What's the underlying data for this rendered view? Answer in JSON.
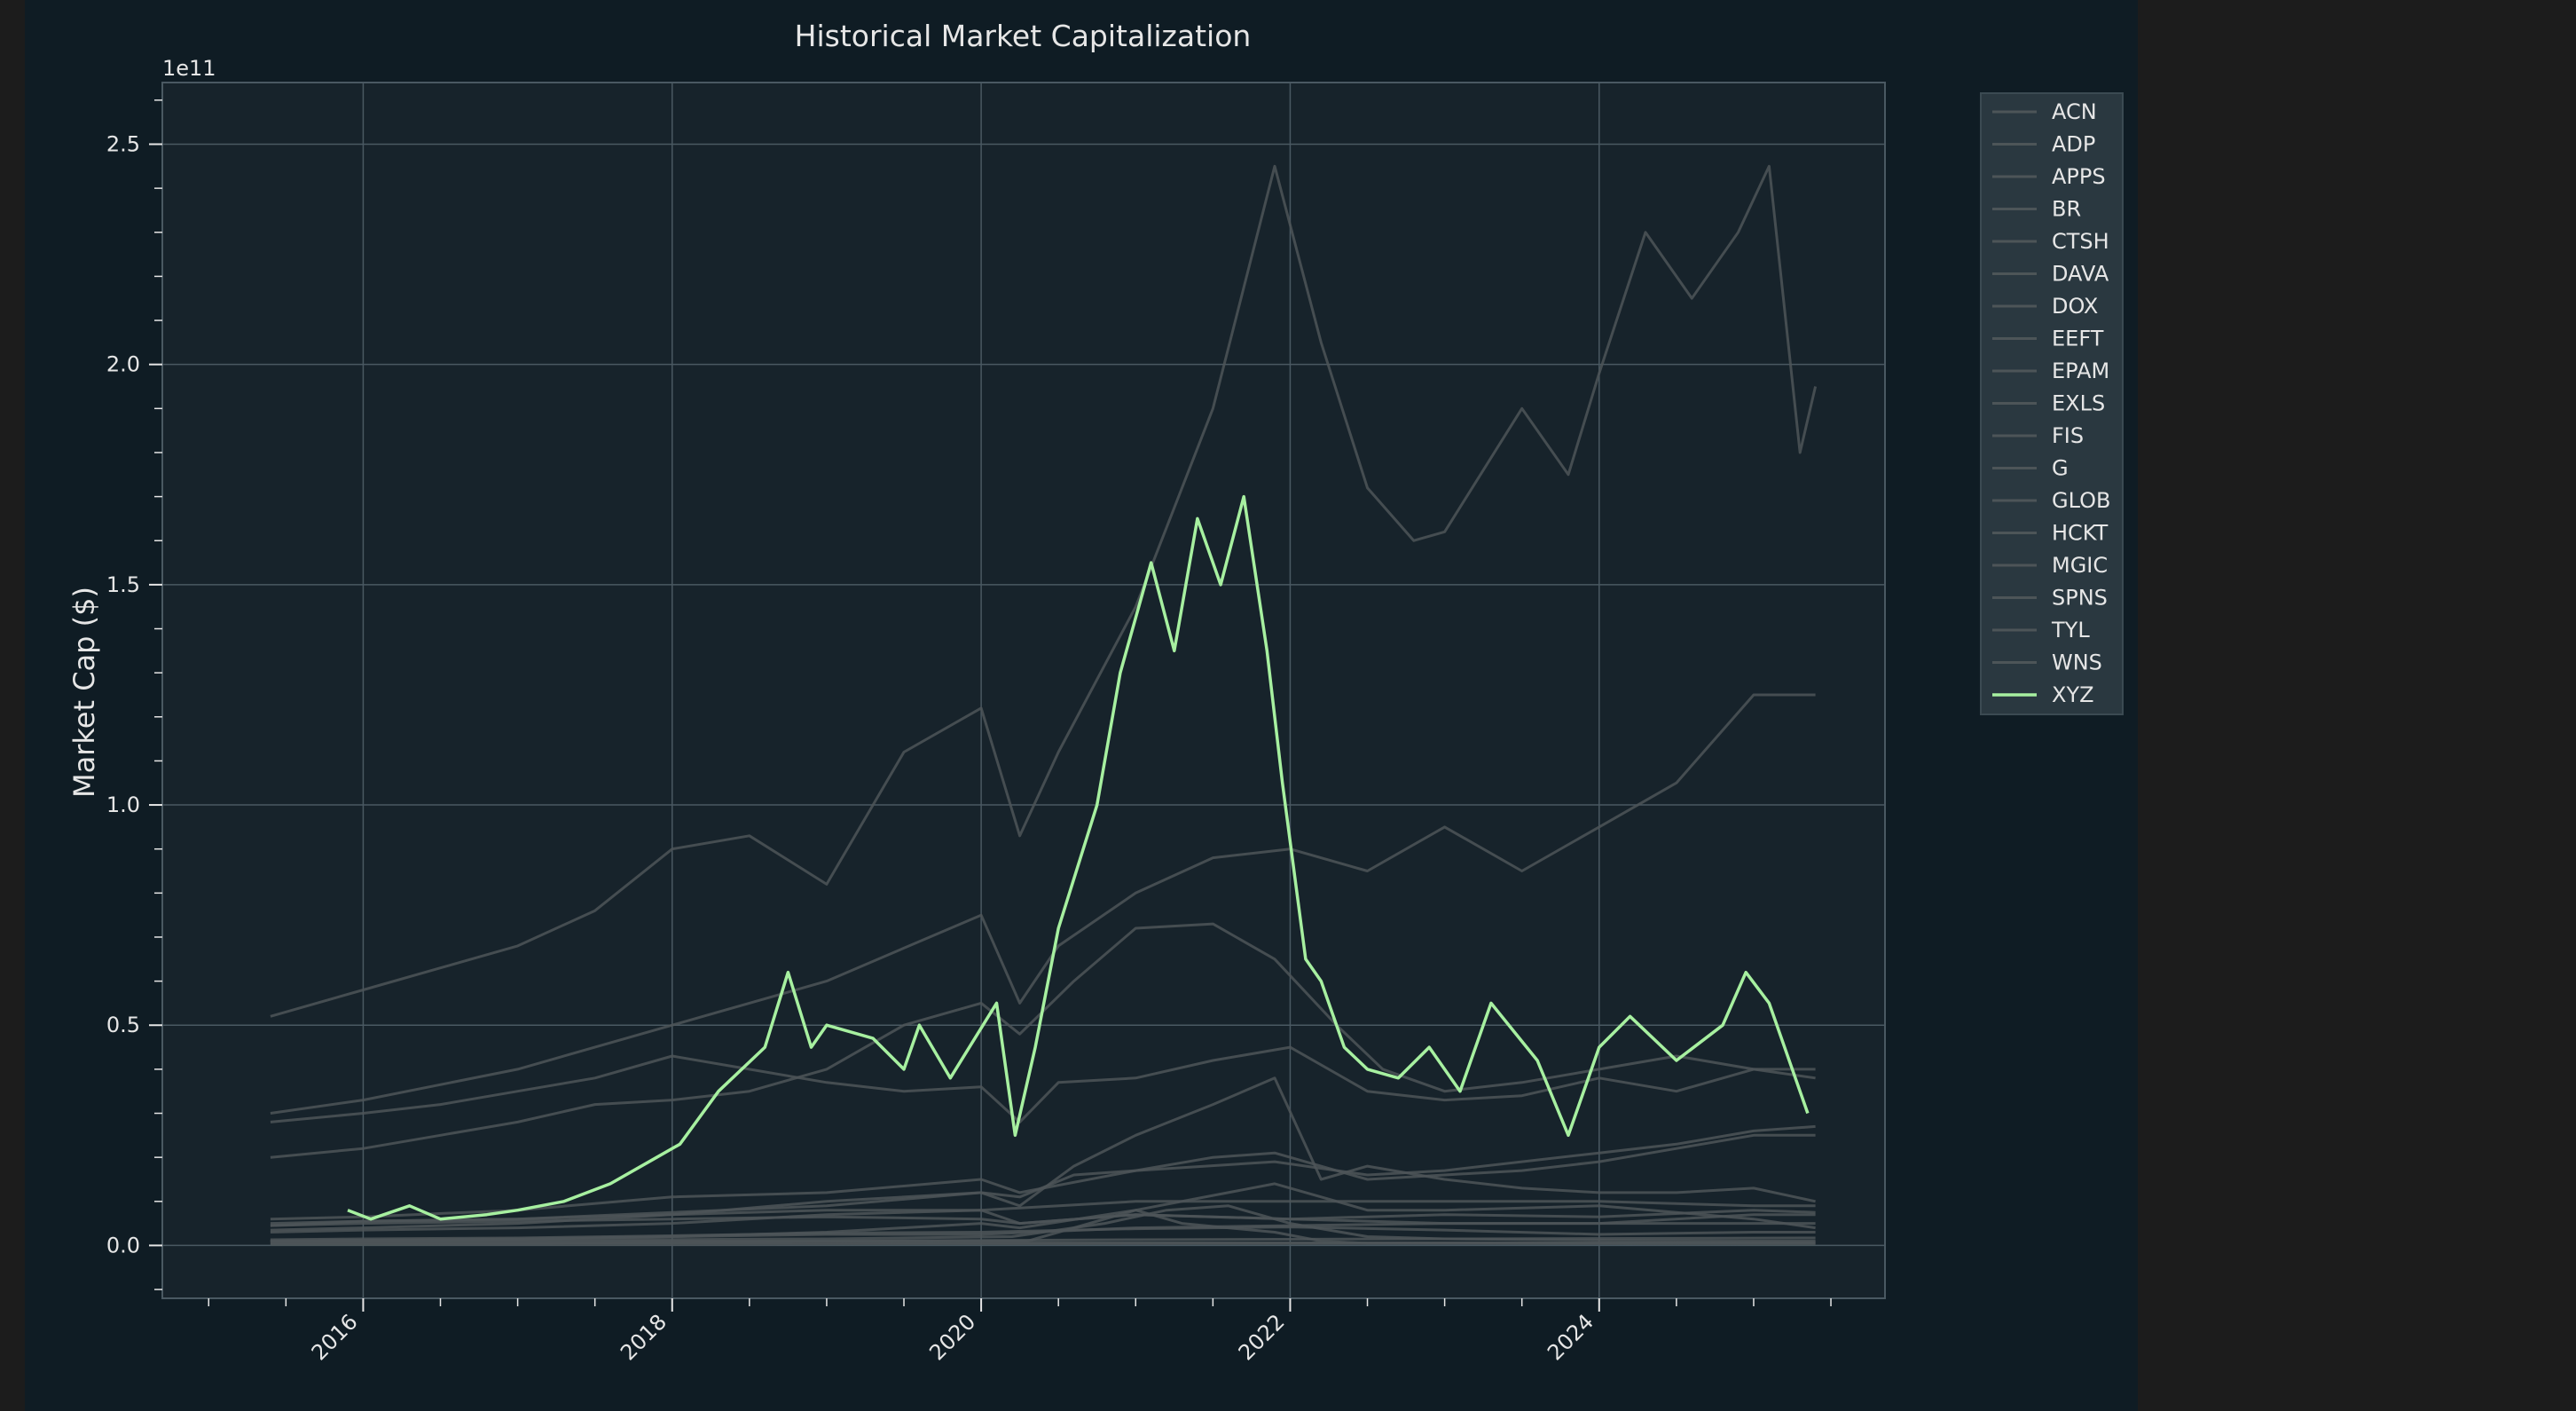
{
  "chart_data": {
    "type": "line",
    "title": "Historical Market Capitalization",
    "xlabel": "",
    "ylabel": "Market Cap ($)",
    "y_offset_label": "1e11",
    "xlim": [
      2014.7,
      2025.85
    ],
    "ylim": [
      -0.12,
      2.64
    ],
    "x_ticks": [
      2016,
      2018,
      2020,
      2022,
      2024
    ],
    "x_tick_labels": [
      "2016",
      "2018",
      "2020",
      "2022",
      "2024"
    ],
    "y_ticks": [
      0.0,
      0.5,
      1.0,
      1.5,
      2.0,
      2.5
    ],
    "y_tick_labels": [
      "0.0",
      "0.5",
      "1.0",
      "1.5",
      "2.0",
      "2.5"
    ],
    "grid": true,
    "legend_position": "outside-right-top",
    "colors": {
      "figure_bg": "#0f1c24",
      "axes_bg": "#17232b",
      "grid": "#4a5962",
      "muted_series": "#4d5558",
      "highlight": "#a7f0a0",
      "text": "#e6e6e6"
    },
    "series": [
      {
        "name": "ACN",
        "color": "#4d5558",
        "highlight": false,
        "x": [
          2015.4,
          2016.0,
          2016.5,
          2017.0,
          2017.5,
          2018.0,
          2018.5,
          2019.0,
          2019.5,
          2020.0,
          2020.25,
          2020.5,
          2021.0,
          2021.5,
          2021.9,
          2022.2,
          2022.5,
          2022.8,
          2023.0,
          2023.5,
          2023.8,
          2024.0,
          2024.3,
          2024.6,
          2024.9,
          2025.1,
          2025.3,
          2025.4
        ],
        "values": [
          0.52,
          0.58,
          0.63,
          0.68,
          0.76,
          0.9,
          0.93,
          0.82,
          1.12,
          1.22,
          0.93,
          1.12,
          1.45,
          1.9,
          2.45,
          2.05,
          1.72,
          1.6,
          1.62,
          1.9,
          1.75,
          1.98,
          2.3,
          2.15,
          2.3,
          2.45,
          1.8,
          1.95
        ]
      },
      {
        "name": "ADP",
        "color": "#4d5558",
        "highlight": false,
        "x": [
          2015.4,
          2016.0,
          2017.0,
          2018.0,
          2019.0,
          2020.0,
          2020.25,
          2020.5,
          2021.0,
          2021.5,
          2022.0,
          2022.5,
          2023.0,
          2023.5,
          2024.0,
          2024.5,
          2025.0,
          2025.4
        ],
        "values": [
          0.3,
          0.33,
          0.4,
          0.5,
          0.6,
          0.75,
          0.55,
          0.68,
          0.8,
          0.88,
          0.9,
          0.85,
          0.95,
          0.85,
          0.95,
          1.05,
          1.25,
          1.25
        ]
      },
      {
        "name": "APPS",
        "color": "#4d5558",
        "highlight": false,
        "x": [
          2015.4,
          2017.0,
          2019.0,
          2020.3,
          2020.8,
          2021.0,
          2021.3,
          2021.6,
          2021.9,
          2022.2,
          2022.5,
          2023.0,
          2024.0,
          2025.0,
          2025.4
        ],
        "values": [
          0.005,
          0.005,
          0.01,
          0.01,
          0.06,
          0.08,
          0.05,
          0.04,
          0.03,
          0.01,
          0.005,
          0.005,
          0.004,
          0.003,
          0.003
        ]
      },
      {
        "name": "BR",
        "color": "#4d5558",
        "highlight": false,
        "x": [
          2015.4,
          2016.0,
          2017.0,
          2018.0,
          2019.0,
          2020.0,
          2020.25,
          2021.0,
          2021.9,
          2022.5,
          2023.0,
          2024.0,
          2024.5,
          2025.0,
          2025.4
        ],
        "values": [
          0.06,
          0.065,
          0.08,
          0.11,
          0.12,
          0.15,
          0.12,
          0.17,
          0.19,
          0.16,
          0.17,
          0.21,
          0.23,
          0.26,
          0.27
        ]
      },
      {
        "name": "CTSH",
        "color": "#4d5558",
        "highlight": false,
        "x": [
          2015.4,
          2016.0,
          2016.5,
          2017.0,
          2017.5,
          2018.0,
          2018.5,
          2019.0,
          2019.5,
          2020.0,
          2020.25,
          2020.5,
          2021.0,
          2021.5,
          2022.0,
          2022.5,
          2023.0,
          2023.5,
          2024.0,
          2024.5,
          2025.0,
          2025.4
        ],
        "values": [
          0.28,
          0.3,
          0.32,
          0.35,
          0.38,
          0.43,
          0.4,
          0.37,
          0.35,
          0.36,
          0.28,
          0.37,
          0.38,
          0.42,
          0.45,
          0.35,
          0.33,
          0.34,
          0.38,
          0.35,
          0.4,
          0.38
        ]
      },
      {
        "name": "DAVA",
        "color": "#4d5558",
        "highlight": false,
        "x": [
          2015.4,
          2017.0,
          2019.0,
          2020.2,
          2020.8,
          2021.2,
          2021.6,
          2022.0,
          2022.5,
          2023.0,
          2024.0,
          2025.0,
          2025.4
        ],
        "values": [
          0.01,
          0.012,
          0.015,
          0.02,
          0.05,
          0.08,
          0.09,
          0.05,
          0.02,
          0.015,
          0.012,
          0.01,
          0.01
        ]
      },
      {
        "name": "DOX",
        "color": "#4d5558",
        "highlight": false,
        "x": [
          2015.4,
          2016.0,
          2017.0,
          2018.0,
          2019.0,
          2020.0,
          2021.0,
          2022.0,
          2023.0,
          2024.0,
          2025.0,
          2025.4
        ],
        "values": [
          0.05,
          0.055,
          0.06,
          0.07,
          0.08,
          0.08,
          0.1,
          0.1,
          0.1,
          0.1,
          0.09,
          0.09
        ]
      },
      {
        "name": "EEFT",
        "color": "#4d5558",
        "highlight": false,
        "x": [
          2015.4,
          2016.0,
          2017.0,
          2018.0,
          2019.0,
          2020.0,
          2020.25,
          2021.0,
          2022.0,
          2023.0,
          2024.0,
          2025.0,
          2025.4
        ],
        "values": [
          0.03,
          0.035,
          0.04,
          0.05,
          0.07,
          0.08,
          0.05,
          0.07,
          0.06,
          0.05,
          0.05,
          0.05,
          0.05
        ]
      },
      {
        "name": "EPAM",
        "color": "#4d5558",
        "highlight": false,
        "x": [
          2015.4,
          2016.0,
          2017.0,
          2018.0,
          2019.0,
          2020.0,
          2020.25,
          2020.6,
          2021.0,
          2021.5,
          2021.9,
          2022.2,
          2022.5,
          2023.0,
          2023.5,
          2024.0,
          2024.5,
          2025.0,
          2025.4
        ],
        "values": [
          0.035,
          0.04,
          0.05,
          0.07,
          0.1,
          0.12,
          0.09,
          0.18,
          0.25,
          0.32,
          0.38,
          0.15,
          0.18,
          0.15,
          0.13,
          0.12,
          0.12,
          0.13,
          0.1
        ]
      },
      {
        "name": "EXLS",
        "color": "#4d5558",
        "highlight": false,
        "x": [
          2015.4,
          2016.0,
          2017.0,
          2018.0,
          2019.0,
          2020.0,
          2021.0,
          2022.0,
          2023.0,
          2024.0,
          2025.0,
          2025.4
        ],
        "values": [
          0.01,
          0.012,
          0.015,
          0.02,
          0.025,
          0.025,
          0.04,
          0.045,
          0.05,
          0.05,
          0.07,
          0.07
        ]
      },
      {
        "name": "FIS",
        "color": "#4d5558",
        "highlight": false,
        "x": [
          2015.4,
          2016.0,
          2016.5,
          2017.0,
          2017.5,
          2018.0,
          2018.5,
          2019.0,
          2019.5,
          2020.0,
          2020.25,
          2020.6,
          2021.0,
          2021.5,
          2021.9,
          2022.3,
          2022.6,
          2023.0,
          2023.5,
          2024.0,
          2024.5,
          2025.0,
          2025.4
        ],
        "values": [
          0.2,
          0.22,
          0.25,
          0.28,
          0.32,
          0.33,
          0.35,
          0.4,
          0.5,
          0.55,
          0.48,
          0.6,
          0.72,
          0.73,
          0.65,
          0.5,
          0.4,
          0.35,
          0.37,
          0.4,
          0.43,
          0.4,
          0.4
        ]
      },
      {
        "name": "G",
        "color": "#4d5558",
        "highlight": false,
        "x": [
          2015.4,
          2016.0,
          2017.0,
          2018.0,
          2019.0,
          2020.0,
          2020.25,
          2021.0,
          2022.0,
          2023.0,
          2024.0,
          2025.0,
          2025.4
        ],
        "values": [
          0.045,
          0.05,
          0.055,
          0.06,
          0.065,
          0.06,
          0.05,
          0.07,
          0.06,
          0.07,
          0.065,
          0.08,
          0.075
        ]
      },
      {
        "name": "GLOB",
        "color": "#4d5558",
        "highlight": false,
        "x": [
          2015.4,
          2016.0,
          2017.0,
          2018.0,
          2019.0,
          2020.0,
          2020.25,
          2021.0,
          2021.9,
          2022.5,
          2023.0,
          2024.0,
          2025.0,
          2025.4
        ],
        "values": [
          0.01,
          0.012,
          0.014,
          0.02,
          0.03,
          0.05,
          0.04,
          0.08,
          0.14,
          0.08,
          0.08,
          0.09,
          0.06,
          0.04
        ]
      },
      {
        "name": "HCKT",
        "color": "#4d5558",
        "highlight": false,
        "x": [
          2015.4,
          2017.0,
          2019.0,
          2021.0,
          2023.0,
          2025.4
        ],
        "values": [
          0.005,
          0.006,
          0.006,
          0.006,
          0.006,
          0.007
        ]
      },
      {
        "name": "MGIC",
        "color": "#4d5558",
        "highlight": false,
        "x": [
          2015.4,
          2017.0,
          2019.0,
          2021.0,
          2023.0,
          2025.4
        ],
        "values": [
          0.002,
          0.002,
          0.003,
          0.004,
          0.005,
          0.006
        ]
      },
      {
        "name": "SPNS",
        "color": "#4d5558",
        "highlight": false,
        "x": [
          2015.4,
          2017.0,
          2019.0,
          2021.0,
          2023.0,
          2025.4
        ],
        "values": [
          0.01,
          0.01,
          0.01,
          0.013,
          0.015,
          0.017
        ]
      },
      {
        "name": "TYL",
        "color": "#4d5558",
        "highlight": false,
        "x": [
          2015.4,
          2016.0,
          2017.0,
          2018.0,
          2019.0,
          2020.0,
          2020.25,
          2020.6,
          2021.0,
          2021.5,
          2021.9,
          2022.5,
          2023.0,
          2023.5,
          2024.0,
          2024.5,
          2025.0,
          2025.4
        ],
        "values": [
          0.045,
          0.055,
          0.06,
          0.075,
          0.09,
          0.12,
          0.11,
          0.16,
          0.17,
          0.2,
          0.21,
          0.15,
          0.16,
          0.17,
          0.19,
          0.22,
          0.25,
          0.25
        ]
      },
      {
        "name": "WNS",
        "color": "#4d5558",
        "highlight": false,
        "x": [
          2015.4,
          2016.0,
          2017.0,
          2018.0,
          2019.0,
          2020.0,
          2021.0,
          2022.0,
          2023.0,
          2024.0,
          2025.0,
          2025.4
        ],
        "values": [
          0.013,
          0.015,
          0.017,
          0.022,
          0.028,
          0.03,
          0.038,
          0.042,
          0.035,
          0.025,
          0.03,
          0.03
        ]
      },
      {
        "name": "XYZ",
        "color": "#a7f0a0",
        "highlight": true,
        "x": [
          2015.9,
          2016.05,
          2016.3,
          2016.5,
          2016.8,
          2017.0,
          2017.3,
          2017.6,
          2017.9,
          2018.05,
          2018.3,
          2018.6,
          2018.75,
          2018.9,
          2019.0,
          2019.3,
          2019.5,
          2019.6,
          2019.8,
          2020.1,
          2020.22,
          2020.35,
          2020.5,
          2020.75,
          2020.9,
          2021.1,
          2021.25,
          2021.4,
          2021.55,
          2021.7,
          2021.85,
          2021.95,
          2022.1,
          2022.2,
          2022.35,
          2022.5,
          2022.7,
          2022.9,
          2023.1,
          2023.3,
          2023.6,
          2023.8,
          2024.0,
          2024.2,
          2024.5,
          2024.8,
          2024.95,
          2025.1,
          2025.25,
          2025.35
        ],
        "values": [
          0.08,
          0.06,
          0.09,
          0.06,
          0.07,
          0.08,
          0.1,
          0.14,
          0.2,
          0.23,
          0.35,
          0.45,
          0.62,
          0.45,
          0.5,
          0.47,
          0.4,
          0.5,
          0.38,
          0.55,
          0.25,
          0.45,
          0.72,
          1.0,
          1.3,
          1.55,
          1.35,
          1.65,
          1.5,
          1.7,
          1.35,
          1.05,
          0.65,
          0.6,
          0.45,
          0.4,
          0.38,
          0.45,
          0.35,
          0.55,
          0.42,
          0.25,
          0.45,
          0.52,
          0.42,
          0.5,
          0.62,
          0.55,
          0.4,
          0.3
        ]
      }
    ]
  }
}
